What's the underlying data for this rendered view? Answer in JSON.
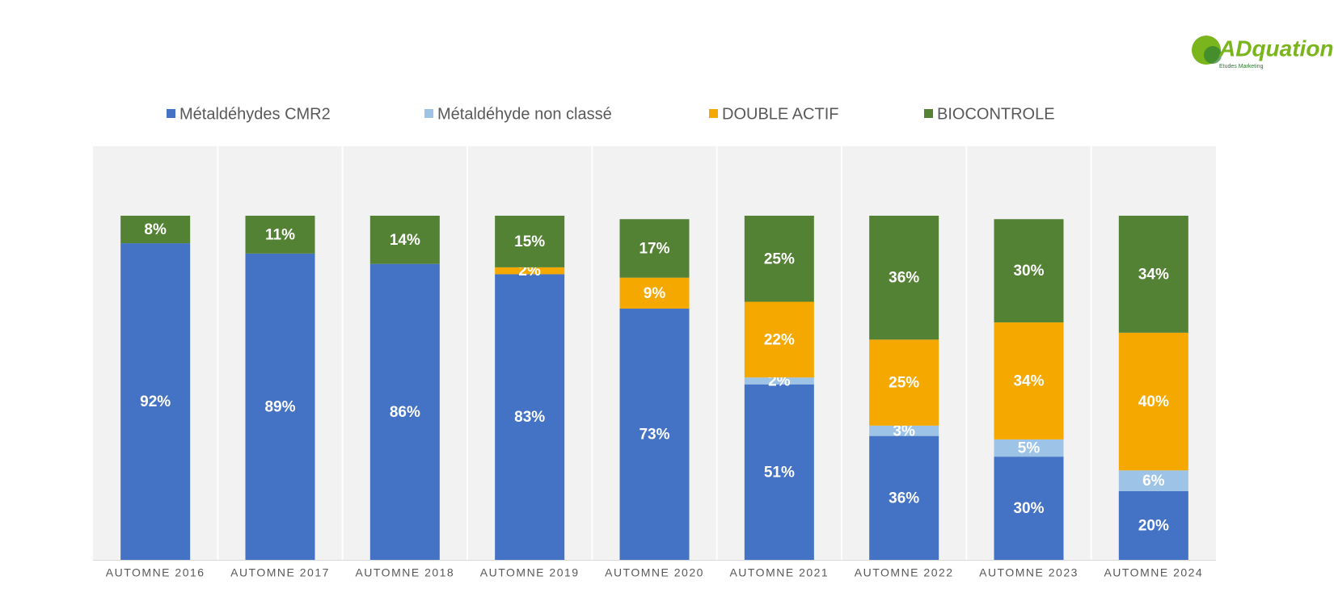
{
  "chart_data": {
    "type": "stacked_bar",
    "logo": {
      "name": "ADquation",
      "tagline": "Etudes Marketing"
    },
    "categories": [
      "AUTOMNE 2016",
      "AUTOMNE 2017",
      "AUTOMNE 2018",
      "AUTOMNE 2019",
      "AUTOMNE 2020",
      "AUTOMNE 2021",
      "AUTOMNE 2022",
      "AUTOMNE 2023",
      "AUTOMNE 2024"
    ],
    "series": [
      {
        "name": "Métaldéhydes CMR2",
        "color": "#4472c4",
        "values": [
          92,
          89,
          86,
          83,
          73,
          51,
          36,
          30,
          20
        ],
        "value_labels": [
          "92%",
          "89%",
          "86%",
          "83%",
          "73%",
          "51%",
          "36%",
          "30%",
          "20%"
        ]
      },
      {
        "name": "Métaldéhyde non classé",
        "color": "#9dc3e6",
        "values": [
          null,
          null,
          null,
          null,
          null,
          2,
          3,
          5,
          6
        ],
        "value_labels": [
          null,
          null,
          null,
          null,
          null,
          "2%",
          "3%",
          "5%",
          "6%"
        ]
      },
      {
        "name": "DOUBLE ACTIF",
        "color": "#f5a800",
        "values": [
          null,
          null,
          null,
          2,
          9,
          22,
          25,
          34,
          40
        ],
        "value_labels": [
          null,
          null,
          null,
          "2%",
          "9%",
          "22%",
          "25%",
          "34%",
          "40%"
        ]
      },
      {
        "name": "BIOCONTROLE",
        "color": "#548235",
        "values": [
          8,
          11,
          14,
          15,
          17,
          25,
          36,
          30,
          34
        ],
        "value_labels": [
          "8%",
          "11%",
          "14%",
          "15%",
          "17%",
          "25%",
          "36%",
          "30%",
          "34%"
        ]
      }
    ],
    "legend": "top"
  }
}
